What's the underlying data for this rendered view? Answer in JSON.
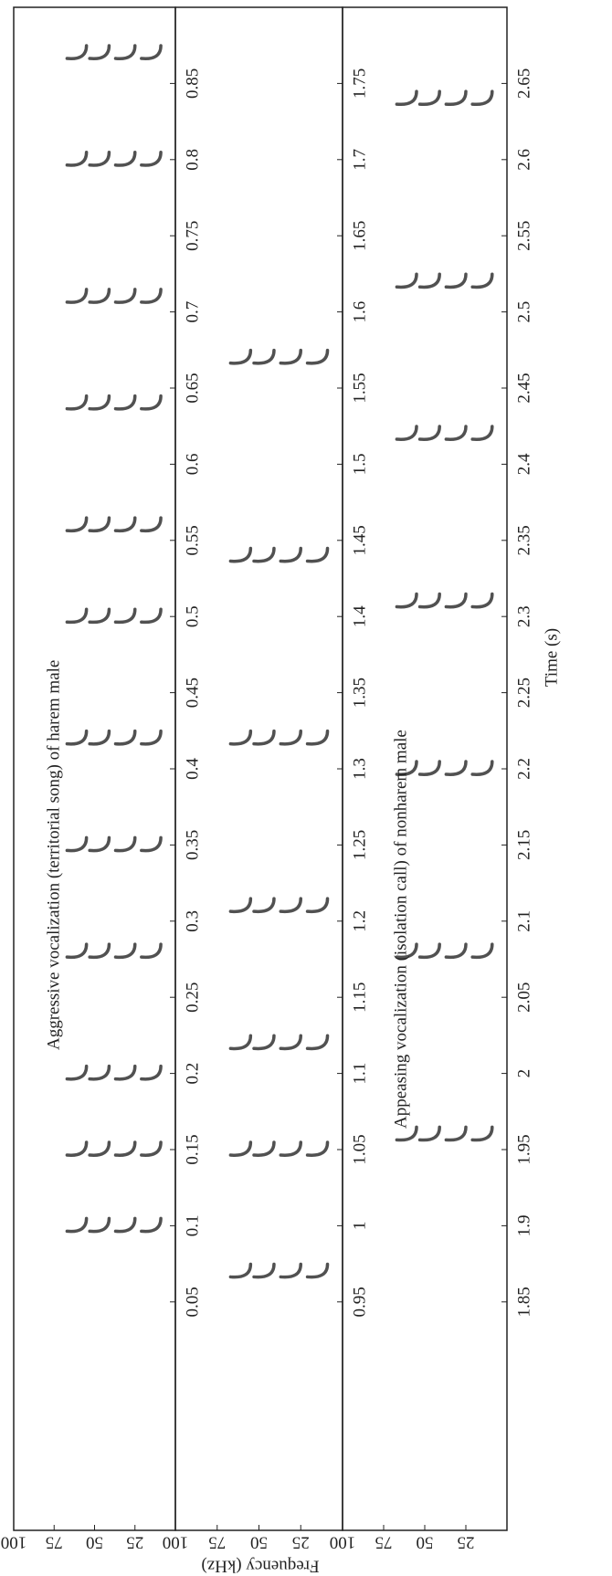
{
  "chart_data": [
    {
      "type": "spectrogram",
      "annotation": "Aggressive vocalization (territorial song) of harem male",
      "xlim": [
        -0.1,
        0.9
      ],
      "xticks": [
        0.05,
        0.1,
        0.15,
        0.2,
        0.25,
        0.3,
        0.35,
        0.4,
        0.45,
        0.5,
        0.55,
        0.6,
        0.65,
        0.7,
        0.75,
        0.8,
        0.85
      ],
      "ylim": [
        0,
        100
      ],
      "yticks": [
        25,
        50,
        75,
        100
      ],
      "calls": [
        0.1,
        0.15,
        0.2,
        0.28,
        0.35,
        0.42,
        0.5,
        0.56,
        0.64,
        0.71,
        0.8,
        0.87
      ]
    },
    {
      "type": "spectrogram",
      "ylabel": "Frequency (kHz)",
      "xlim": [
        0.8,
        1.8
      ],
      "xticks": [
        0.95,
        1,
        1.05,
        1.1,
        1.15,
        1.2,
        1.25,
        1.3,
        1.35,
        1.4,
        1.45,
        1.5,
        1.55,
        1.6,
        1.65,
        1.7,
        1.75
      ],
      "ylim": [
        0,
        100
      ],
      "yticks": [
        25,
        50,
        75,
        100
      ],
      "calls": [
        0.97,
        1.05,
        1.12,
        1.21,
        1.32,
        1.44,
        1.57
      ]
    },
    {
      "type": "spectrogram",
      "annotation": "Appeasing vocalization (isolation call) of nonharem male",
      "xlabel": "Time (s)",
      "xlim": [
        1.7,
        2.7
      ],
      "xticks": [
        1.85,
        1.9,
        1.95,
        2,
        2.05,
        2.1,
        2.15,
        2.2,
        2.25,
        2.3,
        2.35,
        2.4,
        2.45,
        2.5,
        2.55,
        2.6,
        2.65
      ],
      "ylim": [
        0,
        100
      ],
      "yticks": [
        25,
        50,
        75,
        100
      ],
      "calls": [
        1.96,
        2.08,
        2.2,
        2.31,
        2.42,
        2.52,
        2.64
      ]
    }
  ]
}
